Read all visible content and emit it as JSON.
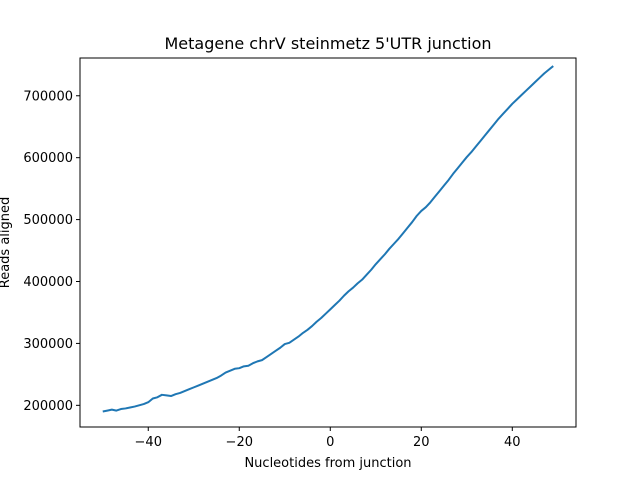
{
  "chart_data": {
    "type": "line",
    "title": "Metagene chrV steinmetz 5'UTR junction",
    "xlabel": "Nucleotides from junction",
    "ylabel": "Reads aligned",
    "xlim": [
      -55,
      54
    ],
    "ylim": [
      165000,
      761000
    ],
    "xticks": [
      -40,
      -20,
      0,
      20,
      40
    ],
    "xtick_labels": [
      "−40",
      "−20",
      "0",
      "20",
      "40"
    ],
    "yticks": [
      200000,
      300000,
      400000,
      500000,
      600000,
      700000
    ],
    "ytick_labels": [
      "200000",
      "300000",
      "400000",
      "500000",
      "600000",
      "700000"
    ],
    "grid": false,
    "color": "#1f77b4",
    "series": [
      {
        "x": [
          -50,
          -49,
          -48,
          -47,
          -46,
          -45,
          -44,
          -43,
          -42,
          -41,
          -40,
          -39,
          -38,
          -37,
          -36,
          -35,
          -34,
          -33,
          -32,
          -31,
          -30,
          -29,
          -28,
          -27,
          -26,
          -25,
          -24,
          -23,
          -22,
          -21,
          -20,
          -19,
          -18,
          -17,
          -16,
          -15,
          -14,
          -13,
          -12,
          -11,
          -10,
          -9,
          -8,
          -7,
          -6,
          -5,
          -4,
          -3,
          -2,
          -1,
          0,
          1,
          2,
          3,
          4,
          5,
          6,
          7,
          8,
          9,
          10,
          11,
          12,
          13,
          14,
          15,
          16,
          17,
          18,
          19,
          20,
          21,
          22,
          23,
          24,
          25,
          26,
          27,
          28,
          29,
          30,
          31,
          32,
          33,
          34,
          35,
          36,
          37,
          38,
          39,
          40,
          41,
          42,
          43,
          44,
          45,
          46,
          47,
          48,
          49
        ],
        "values": [
          190000,
          191500,
          193000,
          191500,
          194000,
          195000,
          196500,
          198000,
          200000,
          202000,
          205000,
          211000,
          213000,
          217000,
          216000,
          215000,
          218000,
          220000,
          223000,
          226000,
          229000,
          232000,
          235000,
          238000,
          241000,
          244000,
          248000,
          253000,
          256000,
          259000,
          260000,
          263000,
          264000,
          268000,
          271000,
          273000,
          278000,
          283000,
          288000,
          293000,
          299000,
          301000,
          306000,
          311000,
          317000,
          322000,
          328000,
          335000,
          341000,
          348000,
          355000,
          362000,
          369000,
          377000,
          384000,
          390000,
          397000,
          403000,
          411000,
          419000,
          428000,
          436000,
          444000,
          453000,
          461000,
          469000,
          478000,
          487000,
          496000,
          506000,
          514000,
          520000,
          528000,
          537000,
          546000,
          555000,
          564000,
          574000,
          583000,
          592000,
          601000,
          609000,
          618000,
          627000,
          636000,
          645000,
          654000,
          663000,
          671000,
          679000,
          687000,
          694000,
          701000,
          708000,
          715000,
          722000,
          729000,
          736000,
          742000,
          748000
        ]
      }
    ]
  }
}
